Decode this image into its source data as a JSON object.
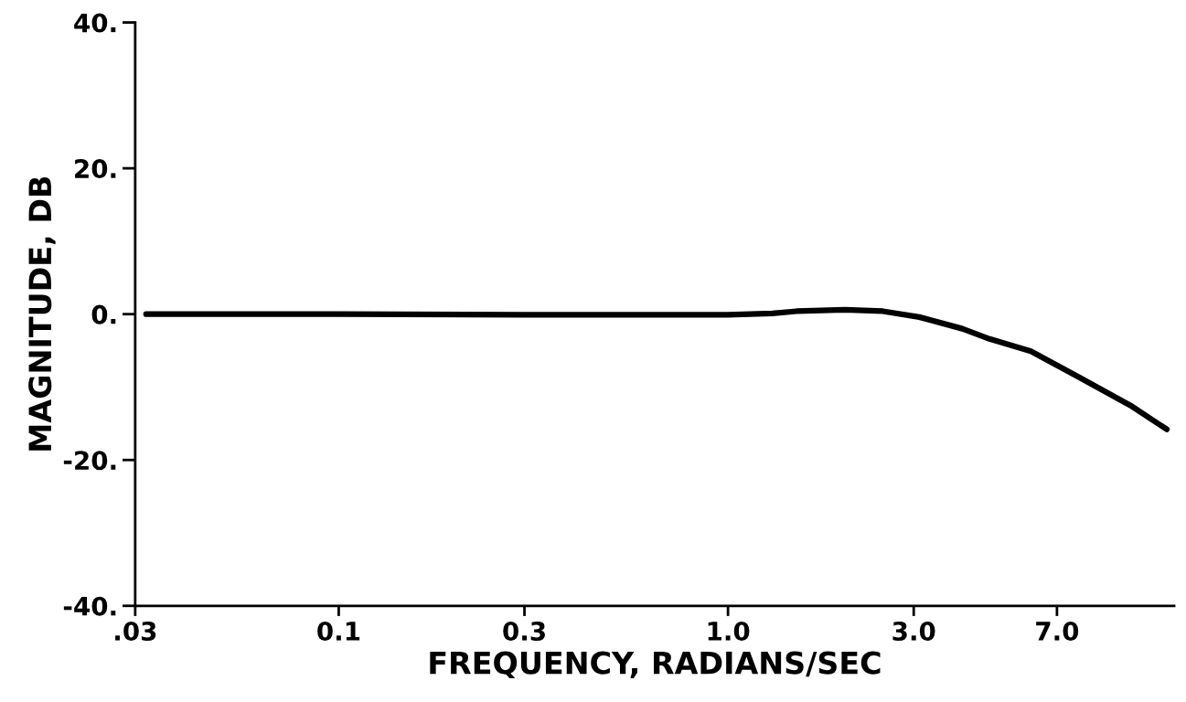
{
  "chart_data": {
    "type": "line",
    "xlabel": "FREQUENCY, RADIANS/SEC",
    "ylabel": "MAGNITUDE, DB",
    "log": "x",
    "grid": false,
    "marker": "none",
    "line_style": "solid",
    "x": [
      0.032,
      0.1,
      0.3,
      1.0,
      1.3,
      1.5,
      2.0,
      2.5,
      3.1,
      4.0,
      4.7,
      6.0,
      8.0,
      10.8,
      13.4
    ],
    "series": [
      {
        "color": "#000000",
        "values": [
          0,
          0,
          -0.1,
          -0.1,
          0.1,
          0.4,
          0.6,
          0.4,
          -0.4,
          -2.0,
          -3.4,
          -5.1,
          -8.7,
          -12.5,
          -15.8
        ]
      }
    ],
    "xlim": [
      0.03,
      14
    ],
    "ylim": [
      -40,
      40
    ],
    "xticks": [
      {
        "value": 0.03,
        "label": ".03"
      },
      0.1,
      0.3,
      {
        "value": 1.0,
        "label": "1.0"
      },
      {
        "value": 3.0,
        "label": "3.0"
      },
      {
        "value": 7.0,
        "label": "7.0"
      }
    ],
    "yticks": [
      {
        "value": -40,
        "label": "-40."
      },
      {
        "value": -20,
        "label": "-20."
      },
      {
        "value": 0,
        "label": "0."
      },
      {
        "value": 20,
        "label": "20."
      },
      {
        "value": 40,
        "label": "40."
      }
    ]
  }
}
